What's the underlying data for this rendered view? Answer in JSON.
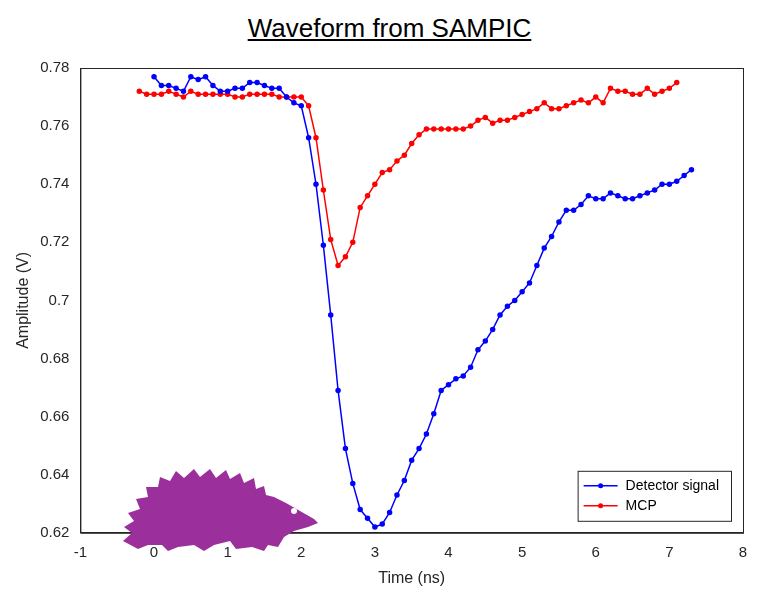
{
  "chart_data": {
    "type": "line",
    "title": "Waveform from SAMPIC",
    "x_label": "Time (ns)",
    "y_label": "Amplitude (V)",
    "xlim": [
      -1,
      8
    ],
    "xticks": [
      -1,
      0,
      1,
      2,
      3,
      4,
      5,
      6,
      7,
      8
    ],
    "ylim": [
      0.62,
      0.78
    ],
    "yticks": [
      0.62,
      0.64,
      0.66,
      0.68,
      0.7,
      0.72,
      0.74,
      0.76,
      0.78
    ],
    "grid": false,
    "legend": "lower right",
    "series": [
      {
        "name": "Detector signal",
        "color": "#0000ff",
        "marker": "circle",
        "line_style": "solid",
        "x": [
          0.0,
          0.1,
          0.2,
          0.3,
          0.4,
          0.5,
          0.6,
          0.7,
          0.8,
          0.9,
          1.0,
          1.1,
          1.2,
          1.3,
          1.4,
          1.5,
          1.6,
          1.7,
          1.8,
          1.9,
          2.0,
          2.1,
          2.2,
          2.3,
          2.4,
          2.5,
          2.6,
          2.7,
          2.8,
          2.9,
          3.0,
          3.1,
          3.2,
          3.3,
          3.4,
          3.5,
          3.6,
          3.7,
          3.8,
          3.9,
          4.0,
          4.1,
          4.2,
          4.3,
          4.4,
          4.5,
          4.6,
          4.7,
          4.8,
          4.9,
          5.0,
          5.1,
          5.2,
          5.3,
          5.4,
          5.5,
          5.6,
          5.7,
          5.8,
          5.9,
          6.0,
          6.1,
          6.2,
          6.3,
          6.4,
          6.5,
          6.6,
          6.7,
          6.8,
          6.9,
          7.0,
          7.1,
          7.2,
          7.3
        ],
        "values": [
          0.777,
          0.774,
          0.774,
          0.773,
          0.772,
          0.777,
          0.776,
          0.777,
          0.774,
          0.772,
          0.772,
          0.773,
          0.773,
          0.775,
          0.775,
          0.774,
          0.773,
          0.773,
          0.77,
          0.768,
          0.767,
          0.756,
          0.74,
          0.719,
          0.695,
          0.669,
          0.649,
          0.637,
          0.628,
          0.625,
          0.622,
          0.623,
          0.627,
          0.633,
          0.638,
          0.645,
          0.649,
          0.654,
          0.661,
          0.669,
          0.671,
          0.673,
          0.674,
          0.677,
          0.683,
          0.686,
          0.69,
          0.695,
          0.698,
          0.7,
          0.703,
          0.706,
          0.712,
          0.718,
          0.722,
          0.727,
          0.731,
          0.731,
          0.733,
          0.736,
          0.735,
          0.735,
          0.737,
          0.736,
          0.735,
          0.735,
          0.736,
          0.737,
          0.738,
          0.74,
          0.74,
          0.741,
          0.743,
          0.745
        ]
      },
      {
        "name": "MCP",
        "color": "#ff0000",
        "marker": "circle",
        "line_style": "solid",
        "x": [
          -0.2,
          -0.1,
          0.0,
          0.1,
          0.2,
          0.3,
          0.4,
          0.5,
          0.6,
          0.7,
          0.8,
          0.9,
          1.0,
          1.1,
          1.2,
          1.3,
          1.4,
          1.5,
          1.6,
          1.7,
          1.8,
          1.9,
          2.0,
          2.1,
          2.2,
          2.3,
          2.4,
          2.5,
          2.6,
          2.7,
          2.8,
          2.9,
          3.0,
          3.1,
          3.2,
          3.3,
          3.4,
          3.5,
          3.6,
          3.7,
          3.8,
          3.9,
          4.0,
          4.1,
          4.2,
          4.3,
          4.4,
          4.5,
          4.6,
          4.7,
          4.8,
          4.9,
          5.0,
          5.1,
          5.2,
          5.3,
          5.4,
          5.5,
          5.6,
          5.7,
          5.8,
          5.9,
          6.0,
          6.1,
          6.2,
          6.3,
          6.4,
          6.5,
          6.6,
          6.7,
          6.8,
          6.9,
          7.0,
          7.1
        ],
        "values": [
          0.772,
          0.771,
          0.771,
          0.771,
          0.772,
          0.771,
          0.77,
          0.772,
          0.771,
          0.771,
          0.771,
          0.771,
          0.771,
          0.77,
          0.77,
          0.771,
          0.771,
          0.771,
          0.771,
          0.77,
          0.77,
          0.77,
          0.77,
          0.767,
          0.756,
          0.738,
          0.721,
          0.712,
          0.715,
          0.72,
          0.732,
          0.736,
          0.74,
          0.744,
          0.745,
          0.748,
          0.75,
          0.754,
          0.757,
          0.759,
          0.759,
          0.759,
          0.759,
          0.759,
          0.759,
          0.76,
          0.762,
          0.763,
          0.761,
          0.762,
          0.762,
          0.763,
          0.764,
          0.765,
          0.766,
          0.768,
          0.766,
          0.766,
          0.767,
          0.768,
          0.769,
          0.768,
          0.77,
          0.768,
          0.773,
          0.772,
          0.772,
          0.771,
          0.771,
          0.773,
          0.771,
          0.772,
          0.773,
          0.775
        ]
      }
    ]
  }
}
